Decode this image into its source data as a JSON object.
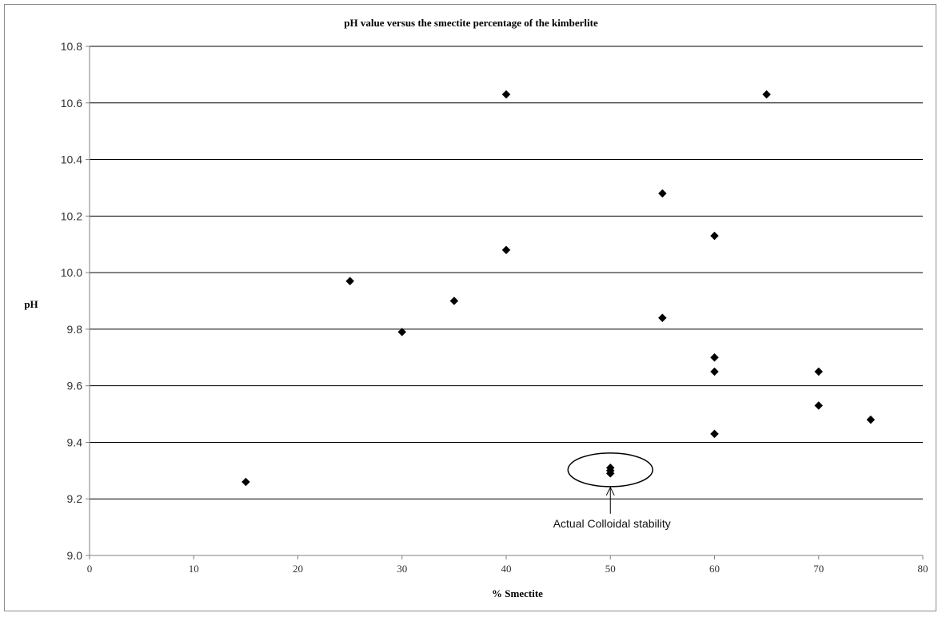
{
  "chart_data": {
    "type": "scatter",
    "title": "pH value versus the smectite percentage of the kimberlite",
    "xlabel": "%  Smectite",
    "ylabel": "pH",
    "xlim": [
      0,
      80
    ],
    "ylim": [
      9.0,
      10.8
    ],
    "x_ticks": [
      "0",
      "10",
      "20",
      "30",
      "40",
      "50",
      "60",
      "70",
      "80"
    ],
    "y_ticks": [
      "9.0",
      "9.2",
      "9.4",
      "9.6",
      "9.8",
      "10.0",
      "10.2",
      "10.4",
      "10.6",
      "10.8"
    ],
    "grid": "horizontal",
    "legend": "none",
    "marker": "diamond",
    "marker_color": "#000000",
    "points": [
      {
        "x": 15,
        "y": 9.26
      },
      {
        "x": 25,
        "y": 9.97
      },
      {
        "x": 30,
        "y": 9.79
      },
      {
        "x": 35,
        "y": 9.9
      },
      {
        "x": 40,
        "y": 10.08
      },
      {
        "x": 40,
        "y": 10.63
      },
      {
        "x": 50,
        "y": 9.31
      },
      {
        "x": 50,
        "y": 9.3
      },
      {
        "x": 50,
        "y": 9.29
      },
      {
        "x": 55,
        "y": 10.28
      },
      {
        "x": 55,
        "y": 9.84
      },
      {
        "x": 60,
        "y": 10.13
      },
      {
        "x": 60,
        "y": 9.7
      },
      {
        "x": 60,
        "y": 9.65
      },
      {
        "x": 60,
        "y": 9.43
      },
      {
        "x": 65,
        "y": 10.63
      },
      {
        "x": 70,
        "y": 9.65
      },
      {
        "x": 70,
        "y": 9.53
      },
      {
        "x": 75,
        "y": 9.48
      }
    ],
    "annotation": {
      "text": "Actual Colloidal stability",
      "target": {
        "x": 50,
        "y": 9.3
      }
    }
  }
}
